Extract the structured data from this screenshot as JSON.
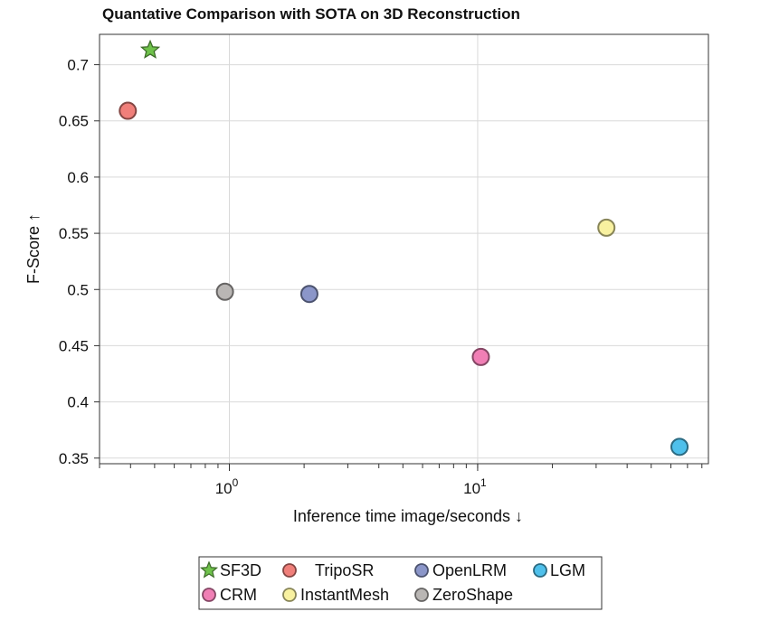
{
  "chart_data": {
    "type": "scatter",
    "title": "Quantative Comparison with SOTA on 3D Reconstruction",
    "xlabel": "Inference time  image/seconds ↓",
    "ylabel": "F-Score ↑",
    "x_scale": "log",
    "xlim": [
      0.3,
      85
    ],
    "ylim": [
      0.345,
      0.727
    ],
    "x_major_ticks": [
      {
        "value": 1,
        "base": "10",
        "exp": "0"
      },
      {
        "value": 10,
        "base": "10",
        "exp": "1"
      }
    ],
    "y_ticks": [
      {
        "value": 0.35,
        "label": "0.35"
      },
      {
        "value": 0.4,
        "label": "0.4"
      },
      {
        "value": 0.45,
        "label": "0.45"
      },
      {
        "value": 0.5,
        "label": "0.5"
      },
      {
        "value": 0.55,
        "label": "0.55"
      },
      {
        "value": 0.6,
        "label": "0.6"
      },
      {
        "value": 0.65,
        "label": "0.65"
      },
      {
        "value": 0.7,
        "label": "0.7"
      }
    ],
    "grid": true,
    "legend_position": "bottom",
    "series": [
      {
        "name": "SF3D",
        "marker": "star",
        "color": "#6fc24b",
        "x": 0.48,
        "y": 0.713
      },
      {
        "name": "TripoSR",
        "marker": "circle",
        "color": "#f07f7a",
        "x": 0.39,
        "y": 0.659
      },
      {
        "name": "OpenLRM",
        "marker": "circle",
        "color": "#8b96c9",
        "x": 2.1,
        "y": 0.496
      },
      {
        "name": "LGM",
        "marker": "circle",
        "color": "#4fc0eb",
        "x": 65,
        "y": 0.36
      },
      {
        "name": "CRM",
        "marker": "circle",
        "color": "#f07fb5",
        "x": 10.3,
        "y": 0.44
      },
      {
        "name": "InstantMesh",
        "marker": "circle",
        "color": "#f8f1a0",
        "x": 33,
        "y": 0.555
      },
      {
        "name": "ZeroShape",
        "marker": "circle",
        "color": "#b9b6b4",
        "x": 0.96,
        "y": 0.498
      }
    ]
  }
}
